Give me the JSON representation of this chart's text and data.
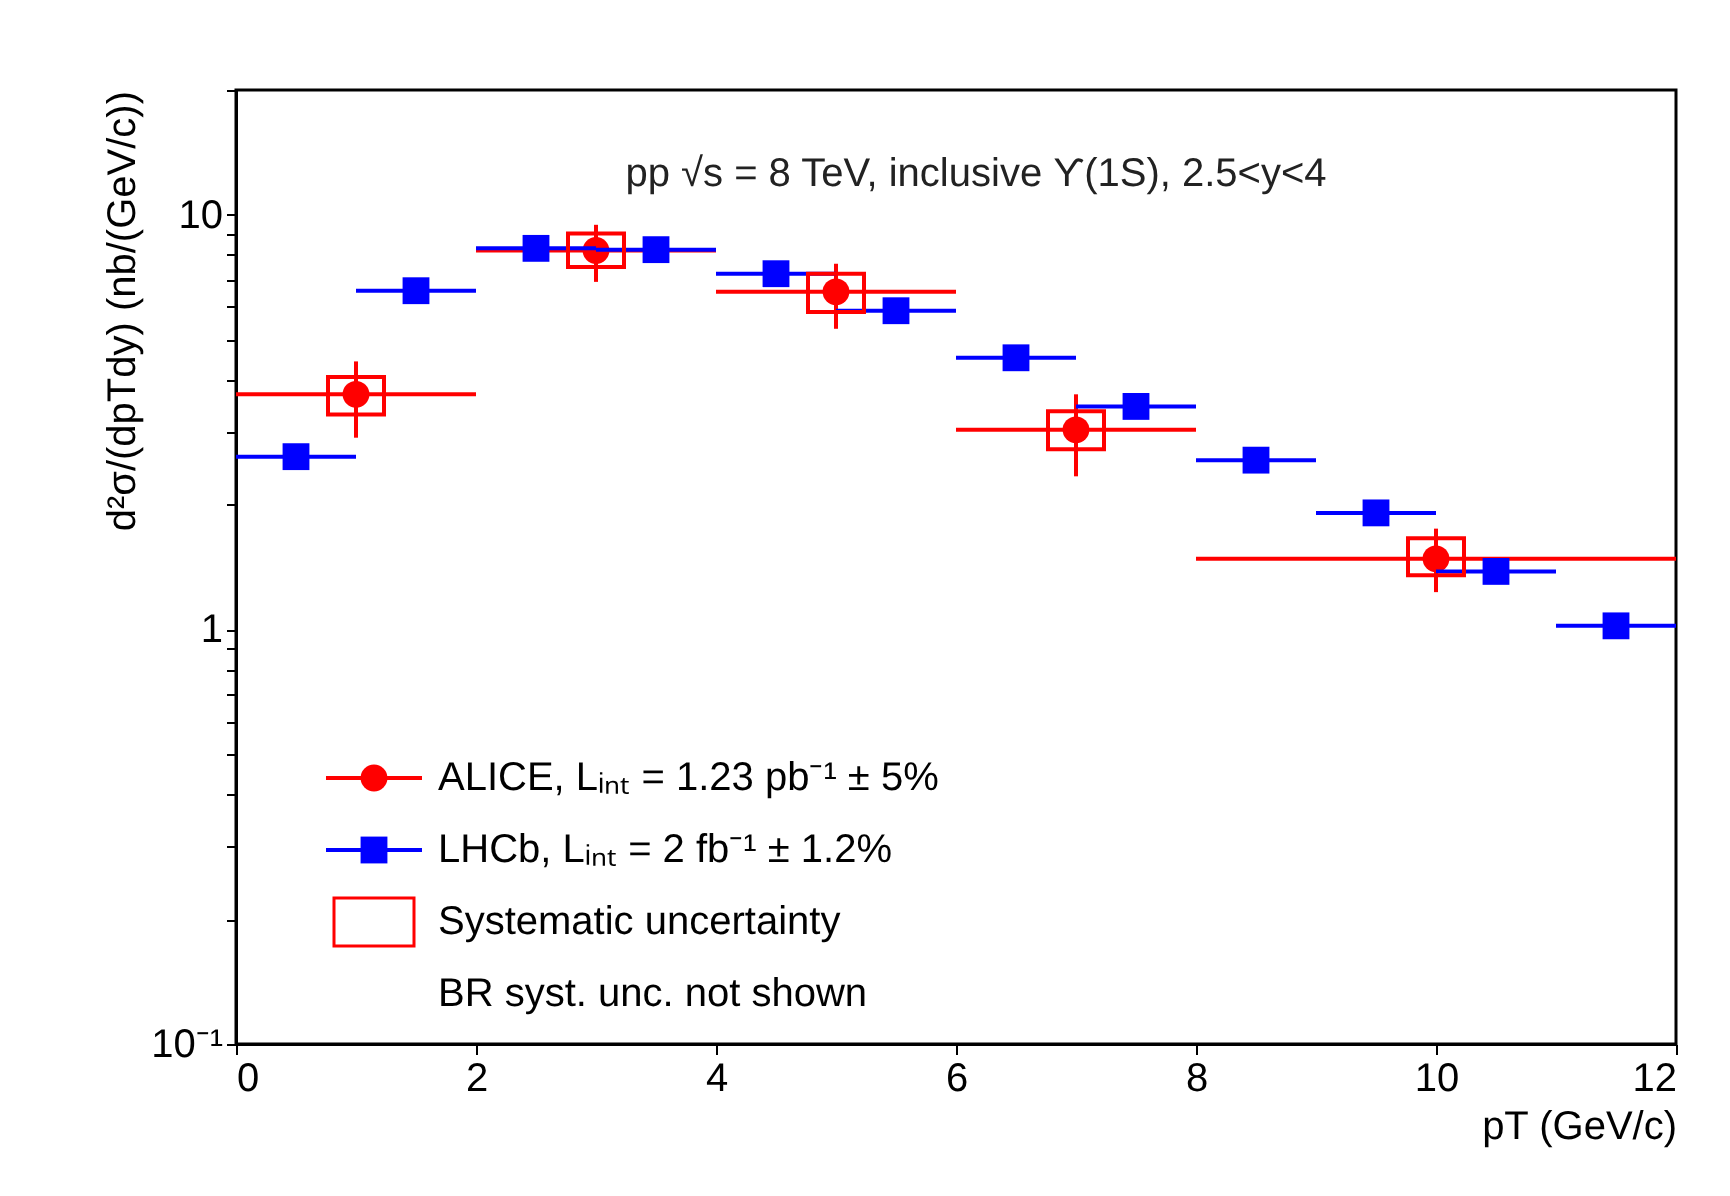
{
  "chart_data": {
    "type": "scatter",
    "title": "pp √s = 8 TeV, inclusive ϒ(1S), 2.5<y<4",
    "xlabel": "pT (GeV/c)",
    "ylabel": "d²σ/(dpTdy) (nb/(GeV/c))",
    "xlim": [
      0,
      12
    ],
    "xticks": [
      0,
      2,
      4,
      6,
      8,
      10,
      12
    ],
    "ylim": [
      0.1,
      20
    ],
    "log": true,
    "yticks": [
      {
        "value": 0.1,
        "label": "10⁻¹"
      },
      {
        "value": 0.2,
        "label": null
      },
      {
        "value": 0.3,
        "label": null
      },
      {
        "value": 0.4,
        "label": null
      },
      {
        "value": 0.5,
        "label": null
      },
      {
        "value": 0.6,
        "label": null
      },
      {
        "value": 0.7,
        "label": null
      },
      {
        "value": 0.8,
        "label": null
      },
      {
        "value": 0.9,
        "label": null
      },
      1,
      {
        "value": 2,
        "label": null
      },
      {
        "value": 3,
        "label": null
      },
      {
        "value": 4,
        "label": null
      },
      {
        "value": 5,
        "label": null
      },
      {
        "value": 6,
        "label": null
      },
      {
        "value": 7,
        "label": null
      },
      {
        "value": 8,
        "label": null
      },
      {
        "value": 9,
        "label": null
      },
      10,
      {
        "value": 20,
        "label": null
      }
    ],
    "grid": false,
    "legend": "bottom left",
    "series": [
      {
        "name": "ALICE, Lᵢₙₜ = 1.23 pb⁻¹ ± 5%",
        "marker": "circle",
        "color": "#ff0000",
        "x": [
          1,
          3,
          5,
          7,
          10
        ],
        "values": [
          3.69,
          8.2,
          6.52,
          3.03,
          1.48
        ],
        "errors": [
          [
            2.9,
            4.43
          ],
          [
            6.89,
            9.46
          ],
          [
            5.31,
            7.62
          ],
          [
            2.34,
            3.69
          ],
          [
            1.23,
            1.75
          ]
        ],
        "xerrors": [
          [
            0,
            2
          ],
          [
            2,
            4
          ],
          [
            4,
            6
          ],
          [
            6,
            8
          ],
          [
            8,
            12
          ]
        ]
      },
      {
        "name": "LHCb, Lᵢₙₜ = 2 fb⁻¹ ± 1.2%",
        "marker": "square",
        "color": "#0000ff",
        "x": [
          0.5,
          1.5,
          2.5,
          3.5,
          4.5,
          5.5,
          6.5,
          7.5,
          8.5,
          9.5,
          10.5,
          11.5
        ],
        "values": [
          2.61,
          6.56,
          8.3,
          8.24,
          7.21,
          5.87,
          4.52,
          3.45,
          2.56,
          1.91,
          1.38,
          1.02
        ],
        "xerrors": [
          [
            0,
            1
          ],
          [
            1,
            2
          ],
          [
            2,
            3
          ],
          [
            3,
            4
          ],
          [
            4,
            5
          ],
          [
            5,
            6
          ],
          [
            6,
            7
          ],
          [
            7,
            8
          ],
          [
            8,
            9
          ],
          [
            9,
            10
          ],
          [
            10,
            11
          ],
          [
            11,
            12
          ]
        ]
      },
      {
        "name": "Systematic uncertainty",
        "type": "bar",
        "color": "#ff0000",
        "x": [
          1,
          3,
          5,
          7,
          10
        ],
        "base": [
          3.3,
          7.48,
          5.83,
          2.72,
          1.35
        ],
        "values": [
          0.76,
          1.53,
          1.38,
          0.64,
          0.31
        ]
      }
    ],
    "annotations": [
      "BR syst. unc. not shown"
    ]
  }
}
